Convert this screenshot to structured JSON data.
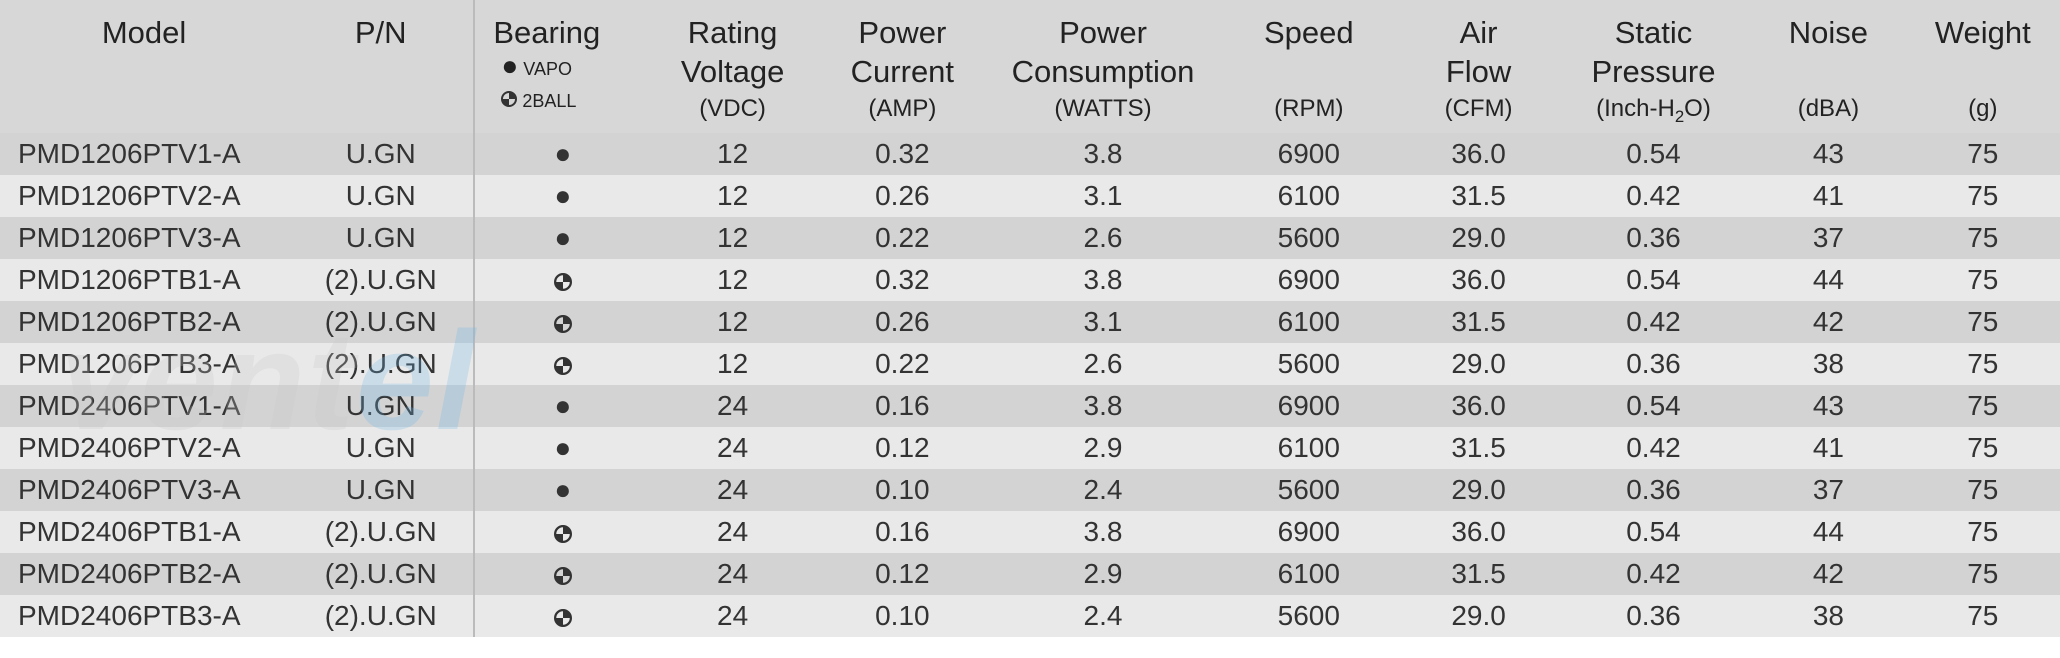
{
  "colors": {
    "row_dark": "#d3d3d3",
    "row_light": "#e9e9e9",
    "header_bg": "#d7d7d7",
    "separator": "#bbbbbb",
    "text": "#333333",
    "wm_gray": "#c8c8c8",
    "wm_blue": "#6bb6e8"
  },
  "fonts": {
    "header_pt": 31,
    "header_sub_pt": 24,
    "body_pt": 28,
    "legend_pt": 19
  },
  "watermark": {
    "part1": "vent",
    "part2": "el"
  },
  "headers": {
    "model": "Model",
    "pn": "P/N",
    "bearing": "Bearing",
    "bearing_legend_vapo": "VAPO",
    "bearing_legend_2ball": "2BALL",
    "voltage": "Rating Voltage",
    "voltage_unit": "(VDC)",
    "current": "Power Current",
    "current_unit": "(AMP)",
    "power": "Power Consumption",
    "power_unit": "(WATTS)",
    "speed": "Speed",
    "speed_unit": "(RPM)",
    "airflow": "Air Flow",
    "airflow_unit": "(CFM)",
    "static": "Static Pressure",
    "static_unit_pre": "(Inch-H",
    "static_unit_sub": "2",
    "static_unit_post": "O)",
    "noise": "Noise",
    "noise_unit": "(dBA)",
    "weight": "Weight",
    "weight_unit": "(g)"
  },
  "bearing_types": {
    "vapo": "vapo",
    "ball": "ball"
  },
  "rows": [
    {
      "model": "PMD1206PTV1-A",
      "pn": "U.GN",
      "bearing": "vapo",
      "v": "12",
      "cur": "0.32",
      "pow": "3.8",
      "spd": "6900",
      "air": "36.0",
      "sp": "0.54",
      "noise": "43",
      "wt": "75"
    },
    {
      "model": "PMD1206PTV2-A",
      "pn": "U.GN",
      "bearing": "vapo",
      "v": "12",
      "cur": "0.26",
      "pow": "3.1",
      "spd": "6100",
      "air": "31.5",
      "sp": "0.42",
      "noise": "41",
      "wt": "75"
    },
    {
      "model": "PMD1206PTV3-A",
      "pn": "U.GN",
      "bearing": "vapo",
      "v": "12",
      "cur": "0.22",
      "pow": "2.6",
      "spd": "5600",
      "air": "29.0",
      "sp": "0.36",
      "noise": "37",
      "wt": "75"
    },
    {
      "model": "PMD1206PTB1-A",
      "pn": "(2).U.GN",
      "bearing": "ball",
      "v": "12",
      "cur": "0.32",
      "pow": "3.8",
      "spd": "6900",
      "air": "36.0",
      "sp": "0.54",
      "noise": "44",
      "wt": "75"
    },
    {
      "model": "PMD1206PTB2-A",
      "pn": "(2).U.GN",
      "bearing": "ball",
      "v": "12",
      "cur": "0.26",
      "pow": "3.1",
      "spd": "6100",
      "air": "31.5",
      "sp": "0.42",
      "noise": "42",
      "wt": "75"
    },
    {
      "model": "PMD1206PTB3-A",
      "pn": "(2).U.GN",
      "bearing": "ball",
      "v": "12",
      "cur": "0.22",
      "pow": "2.6",
      "spd": "5600",
      "air": "29.0",
      "sp": "0.36",
      "noise": "38",
      "wt": "75"
    },
    {
      "model": "PMD2406PTV1-A",
      "pn": "U.GN",
      "bearing": "vapo",
      "v": "24",
      "cur": "0.16",
      "pow": "3.8",
      "spd": "6900",
      "air": "36.0",
      "sp": "0.54",
      "noise": "43",
      "wt": "75"
    },
    {
      "model": "PMD2406PTV2-A",
      "pn": "U.GN",
      "bearing": "vapo",
      "v": "24",
      "cur": "0.12",
      "pow": "2.9",
      "spd": "6100",
      "air": "31.5",
      "sp": "0.42",
      "noise": "41",
      "wt": "75"
    },
    {
      "model": "PMD2406PTV3-A",
      "pn": "U.GN",
      "bearing": "vapo",
      "v": "24",
      "cur": "0.10",
      "pow": "2.4",
      "spd": "5600",
      "air": "29.0",
      "sp": "0.36",
      "noise": "37",
      "wt": "75"
    },
    {
      "model": "PMD2406PTB1-A",
      "pn": "(2).U.GN",
      "bearing": "ball",
      "v": "24",
      "cur": "0.16",
      "pow": "3.8",
      "spd": "6900",
      "air": "36.0",
      "sp": "0.54",
      "noise": "44",
      "wt": "75"
    },
    {
      "model": "PMD2406PTB2-A",
      "pn": "(2).U.GN",
      "bearing": "ball",
      "v": "24",
      "cur": "0.12",
      "pow": "2.9",
      "spd": "6100",
      "air": "31.5",
      "sp": "0.42",
      "noise": "42",
      "wt": "75"
    },
    {
      "model": "PMD2406PTB3-A",
      "pn": "(2).U.GN",
      "bearing": "ball",
      "v": "24",
      "cur": "0.10",
      "pow": "2.4",
      "spd": "5600",
      "air": "29.0",
      "sp": "0.36",
      "noise": "38",
      "wt": "75"
    }
  ]
}
